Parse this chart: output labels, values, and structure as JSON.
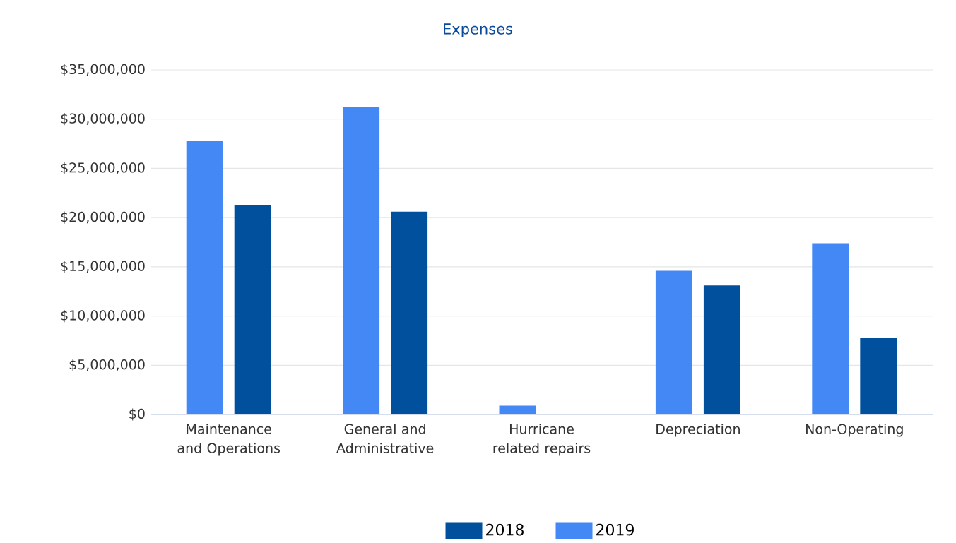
{
  "chart_data": {
    "type": "bar",
    "title": "Expenses",
    "categories": [
      "Maintenance and Operations",
      "General and Administrative",
      "Hurricane related repairs",
      "Depreciation",
      "Non-Operating"
    ],
    "series": [
      {
        "name": "2019",
        "color": "#4488f6",
        "values": [
          27800000,
          31200000,
          900000,
          14600000,
          17400000
        ]
      },
      {
        "name": "2018",
        "color": "#00509d",
        "values": [
          21300000,
          20600000,
          0,
          13100000,
          7800000
        ]
      }
    ],
    "ylim": [
      0,
      35000000
    ],
    "yticks": [
      {
        "value": 0,
        "label": "$0"
      },
      {
        "value": 5000000,
        "label": "$5,000,000"
      },
      {
        "value": 10000000,
        "label": "$10,000,000"
      },
      {
        "value": 15000000,
        "label": "$15,000,000"
      },
      {
        "value": 20000000,
        "label": "$20,000,000"
      },
      {
        "value": 25000000,
        "label": "$25,000,000"
      },
      {
        "value": 30000000,
        "label": "$30,000,000"
      },
      {
        "value": 35000000,
        "label": "$35,000,000"
      }
    ],
    "grid": "y",
    "legend": "bottom"
  }
}
